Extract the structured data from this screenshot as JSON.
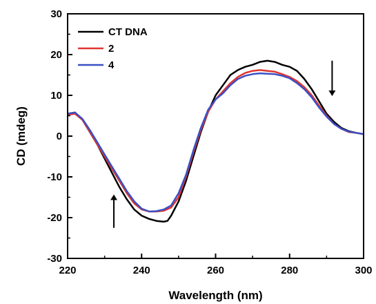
{
  "chart_data": {
    "type": "line",
    "title": "",
    "xlabel": "Wavelength (nm)",
    "ylabel": "CD (mdeg)",
    "xlim": [
      220,
      300
    ],
    "ylim": [
      -30,
      30
    ],
    "xticks": [
      "220",
      "240",
      "260",
      "280",
      "300"
    ],
    "yticks": [
      "-30",
      "-20",
      "-10",
      "0",
      "10",
      "20",
      "30"
    ],
    "legend_position": "top-left",
    "grid": false,
    "series": [
      {
        "name": "CT DNA",
        "color": "#000000",
        "x": [
          220,
          222,
          224,
          226,
          228,
          230,
          232,
          234,
          236,
          238,
          240,
          242,
          244,
          246,
          247,
          248,
          250,
          252,
          254,
          256,
          258,
          260,
          262,
          264,
          266,
          268,
          270,
          272,
          274,
          276,
          278,
          280,
          282,
          284,
          286,
          288,
          290,
          292,
          294,
          296,
          298,
          300
        ],
        "y": [
          5.5,
          5.8,
          4,
          1,
          -2,
          -5.5,
          -9,
          -12.5,
          -15.5,
          -18,
          -19.5,
          -20.3,
          -20.8,
          -21,
          -20.8,
          -19.5,
          -16,
          -11,
          -5,
          1,
          6,
          10,
          12.5,
          15,
          16.2,
          17,
          17.5,
          18.2,
          18.5,
          18.2,
          17.5,
          17,
          16,
          14,
          11.5,
          8.5,
          5.5,
          3.5,
          2,
          1.2,
          0.8,
          0.5
        ]
      },
      {
        "name": "2",
        "color": "#e0342f",
        "x": [
          220,
          222,
          224,
          226,
          228,
          230,
          232,
          234,
          236,
          238,
          240,
          242,
          244,
          246,
          248,
          250,
          252,
          254,
          256,
          258,
          260,
          262,
          264,
          266,
          268,
          270,
          272,
          274,
          276,
          278,
          280,
          282,
          284,
          286,
          288,
          290,
          292,
          294,
          296,
          298,
          300
        ],
        "y": [
          5.2,
          5.5,
          4,
          1,
          -2,
          -5,
          -8,
          -11,
          -14,
          -16.5,
          -18,
          -18.5,
          -18.5,
          -18.3,
          -17.5,
          -15,
          -10,
          -4,
          1.5,
          6,
          9,
          11,
          13,
          14.5,
          15.5,
          16,
          16.2,
          16,
          15.8,
          15.2,
          14.5,
          13.5,
          12,
          10,
          7.5,
          5,
          3,
          1.8,
          1,
          0.8,
          0.5
        ]
      },
      {
        "name": "4",
        "color": "#3b4fc4",
        "x": [
          220,
          222,
          224,
          226,
          228,
          230,
          232,
          234,
          236,
          238,
          240,
          242,
          244,
          246,
          248,
          250,
          252,
          254,
          256,
          258,
          260,
          262,
          264,
          266,
          268,
          270,
          272,
          274,
          276,
          278,
          280,
          282,
          284,
          286,
          288,
          290,
          292,
          294,
          296,
          298,
          300
        ],
        "y": [
          5.5,
          5.8,
          4.2,
          1.5,
          -1.5,
          -4.5,
          -7.5,
          -10.5,
          -13.5,
          -16,
          -17.8,
          -18.5,
          -18.4,
          -18,
          -17,
          -14,
          -9.5,
          -3.5,
          2,
          6.5,
          9,
          10.5,
          12.5,
          14,
          14.8,
          15.2,
          15.4,
          15.3,
          15.2,
          14.8,
          14.2,
          13,
          11.5,
          9.5,
          7,
          4.8,
          3,
          1.8,
          1.1,
          0.8,
          0.5
        ]
      }
    ],
    "annotations": [
      {
        "type": "arrow",
        "direction": "up",
        "x": 232.5,
        "y_from": -22.5,
        "y_to": -15
      },
      {
        "type": "arrow",
        "direction": "down",
        "x": 291.5,
        "y_from": 18.5,
        "y_to": 10.5
      }
    ]
  }
}
